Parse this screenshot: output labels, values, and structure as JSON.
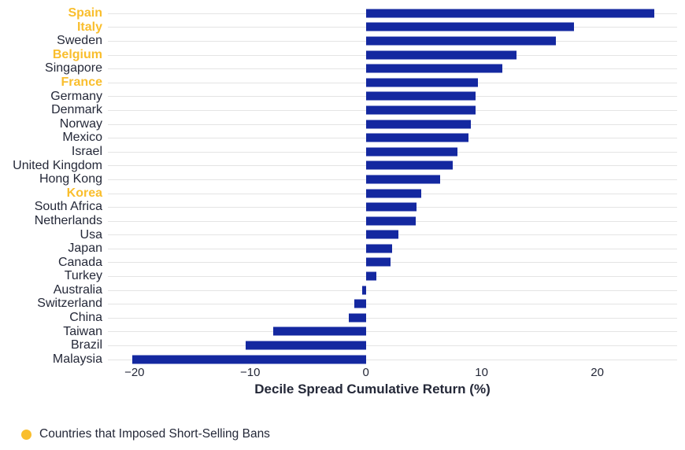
{
  "colors": {
    "bar": "#1428A0",
    "highlight": "#F9BE2D",
    "text": "#242838",
    "gridline": "#E4E4E4",
    "background": "#FFFFFF"
  },
  "chart_data": {
    "type": "bar",
    "orientation": "horizontal",
    "title": "",
    "xlabel": "Decile Spread Cumulative Return (%)",
    "ylabel": "",
    "xlim": [
      -22.3,
      26.9
    ],
    "xticks": [
      -20,
      -10,
      0,
      10,
      20
    ],
    "xtick_labels": [
      "−20",
      "−10",
      "0",
      "10",
      "20"
    ],
    "grid": "horizontal category gridlines only",
    "categories": [
      "Spain",
      "Italy",
      "Sweden",
      "Belgium",
      "Singapore",
      "France",
      "Germany",
      "Denmark",
      "Norway",
      "Mexico",
      "Israel",
      "United Kingdom",
      "Hong Kong",
      "Korea",
      "South Africa",
      "Netherlands",
      "Usa",
      "Japan",
      "Canada",
      "Turkey",
      "Australia",
      "Switzerland",
      "China",
      "Taiwan",
      "Brazil",
      "Malaysia"
    ],
    "values": [
      24.9,
      18.0,
      16.4,
      13.0,
      11.8,
      9.7,
      9.5,
      9.5,
      9.1,
      8.9,
      7.9,
      7.5,
      6.4,
      4.8,
      4.4,
      4.3,
      2.8,
      2.3,
      2.1,
      0.9,
      -0.3,
      -1.0,
      -1.5,
      -8.0,
      -10.4,
      -20.2
    ],
    "highlighted_categories": [
      "Spain",
      "Italy",
      "Belgium",
      "France",
      "Korea"
    ],
    "legend": {
      "position": "bottom-left",
      "items": [
        {
          "label": "Countries that Imposed Short-Selling Bans",
          "color": "#F9BE2D",
          "marker": "circle"
        }
      ]
    }
  }
}
